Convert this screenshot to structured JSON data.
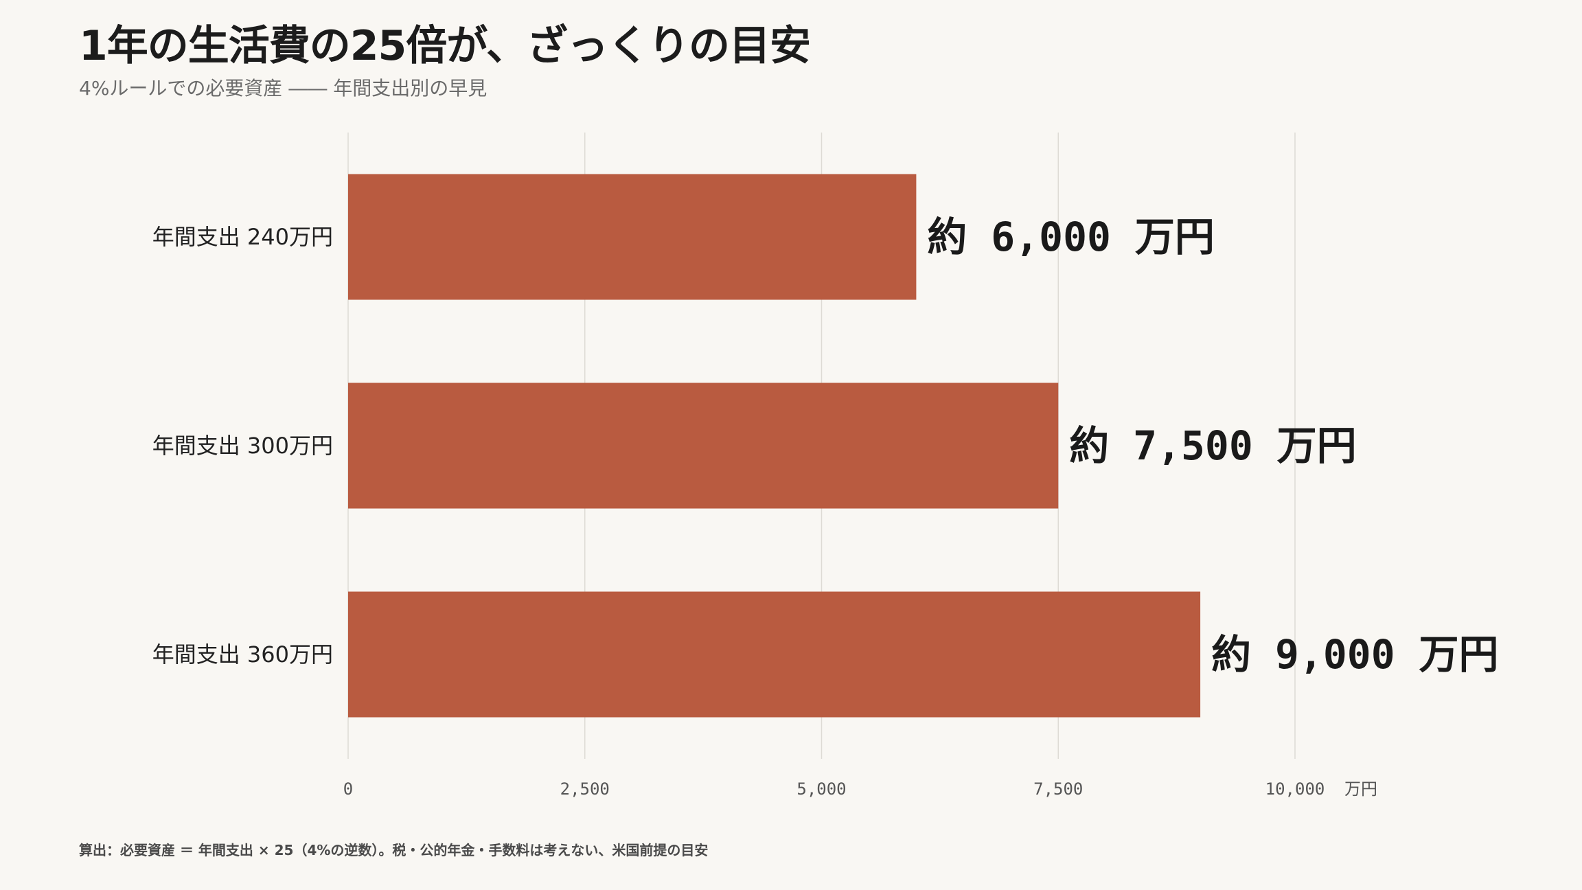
{
  "title": "1年の生活費の25倍が、ざっくりの目安",
  "subtitle": "4%ルールでの必要資産 ―― 年間支出別の早見",
  "footnote": "算出：必要資産 ＝ 年間支出 × 25（4%の逆数）。税・公的年金・手数料は考えない、米国前提の目安",
  "chart_data": {
    "type": "bar",
    "orientation": "horizontal",
    "categories": [
      "年間支出 240万円",
      "年間支出 300万円",
      "年間支出 360万円"
    ],
    "values": [
      6000,
      7500,
      9000
    ],
    "data_labels": [
      "約 6,000 万円",
      "約 7,500 万円",
      "約 9,000 万円"
    ],
    "xlim": [
      0,
      10000
    ],
    "x_ticks": [
      0,
      2500,
      5000,
      7500,
      10000
    ],
    "x_tick_labels": [
      "0",
      "2,500",
      "5,000",
      "7,500",
      "10,000"
    ],
    "x_unit": "万円",
    "bar_color": "#b95b40",
    "grid": true
  }
}
